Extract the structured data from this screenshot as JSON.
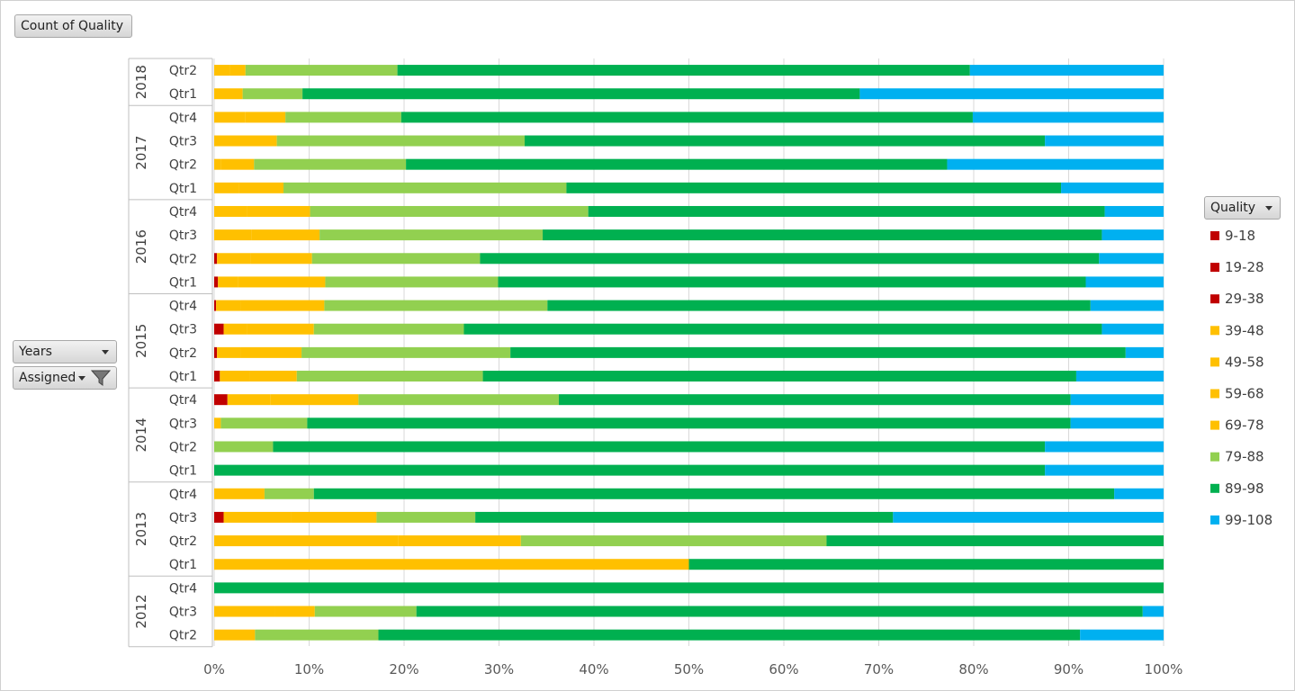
{
  "field_buttons": {
    "value_field": "Count of Quality",
    "row_field_1": "Years",
    "row_field_2": "Assigned",
    "legend_field": "Quality"
  },
  "colors": {
    "9-18": "#c00000",
    "19-28": "#c00000",
    "29-38": "#c00000",
    "39-48": "#ffc000",
    "49-58": "#ffc000",
    "59-68": "#ffc000",
    "69-78": "#ffc000",
    "79-88": "#92d050",
    "89-98": "#00b050",
    "99-108": "#00b0f0"
  },
  "chart_data": {
    "type": "bar",
    "orientation": "horizontal",
    "stacking": "percent",
    "title": "",
    "xlabel": "",
    "ylabel": "",
    "xlim": [
      0,
      100
    ],
    "x_ticks": [
      "0%",
      "10%",
      "20%",
      "30%",
      "40%",
      "50%",
      "60%",
      "70%",
      "80%",
      "90%",
      "100%"
    ],
    "legend": {
      "title": "Quality",
      "position": "right",
      "entries": [
        "9-18",
        "19-28",
        "29-38",
        "39-48",
        "49-58",
        "59-68",
        "69-78",
        "79-88",
        "89-98",
        "99-108"
      ]
    },
    "groups": [
      {
        "year": "2018",
        "quarters": [
          {
            "label": "Qtr2",
            "segments": [
              [
                "39-48",
                1.7
              ],
              [
                "49-58",
                1.6
              ],
              [
                "79-88",
                16
              ],
              [
                "89-98",
                60.3
              ],
              [
                "99-108",
                20.4
              ]
            ]
          },
          {
            "label": "Qtr1",
            "segments": [
              [
                "39-48",
                3
              ],
              [
                "79-88",
                6.3
              ],
              [
                "89-98",
                58.7
              ],
              [
                "99-108",
                32
              ]
            ]
          }
        ]
      },
      {
        "year": "2017",
        "quarters": [
          {
            "label": "Qtr4",
            "segments": [
              [
                "39-48",
                3.3
              ],
              [
                "49-58",
                4.2
              ],
              [
                "79-88",
                12.2
              ],
              [
                "89-98",
                60.2
              ],
              [
                "99-108",
                20.1
              ]
            ]
          },
          {
            "label": "Qtr3",
            "segments": [
              [
                "39-48",
                1.8
              ],
              [
                "49-58",
                4.8
              ],
              [
                "79-88",
                26.1
              ],
              [
                "89-98",
                54.8
              ],
              [
                "99-108",
                12.5
              ]
            ]
          },
          {
            "label": "Qtr2",
            "segments": [
              [
                "39-48",
                0.7
              ],
              [
                "49-58",
                3.5
              ],
              [
                "79-88",
                16
              ],
              [
                "89-98",
                57
              ],
              [
                "99-108",
                22.8
              ]
            ]
          },
          {
            "label": "Qtr1",
            "segments": [
              [
                "39-48",
                2.6
              ],
              [
                "49-58",
                4.7
              ],
              [
                "79-88",
                29.8
              ],
              [
                "89-98",
                52.1
              ],
              [
                "99-108",
                10.8
              ]
            ]
          }
        ]
      },
      {
        "year": "2016",
        "quarters": [
          {
            "label": "Qtr4",
            "segments": [
              [
                "39-48",
                3.5
              ],
              [
                "49-58",
                6.6
              ],
              [
                "79-88",
                29.3
              ],
              [
                "89-98",
                54.4
              ],
              [
                "99-108",
                6.2
              ]
            ]
          },
          {
            "label": "Qtr3",
            "segments": [
              [
                "39-48",
                3.9
              ],
              [
                "49-58",
                7.2
              ],
              [
                "79-88",
                23.5
              ],
              [
                "89-98",
                58.9
              ],
              [
                "99-108",
                6.5
              ]
            ]
          },
          {
            "label": "Qtr2",
            "segments": [
              [
                "9-18",
                0.3
              ],
              [
                "39-48",
                3.5
              ],
              [
                "49-58",
                6.5
              ],
              [
                "79-88",
                17.7
              ],
              [
                "89-98",
                65.2
              ],
              [
                "99-108",
                6.8
              ]
            ]
          },
          {
            "label": "Qtr1",
            "segments": [
              [
                "9-18",
                0.4
              ],
              [
                "39-48",
                2.1
              ],
              [
                "49-58",
                9.2
              ],
              [
                "79-88",
                18.2
              ],
              [
                "89-98",
                61.9
              ],
              [
                "99-108",
                8.2
              ]
            ]
          }
        ]
      },
      {
        "year": "2015",
        "quarters": [
          {
            "label": "Qtr4",
            "segments": [
              [
                "9-18",
                0.2
              ],
              [
                "39-48",
                2.6
              ],
              [
                "49-58",
                8.8
              ],
              [
                "79-88",
                23.5
              ],
              [
                "89-98",
                57.2
              ],
              [
                "99-108",
                7.7
              ]
            ]
          },
          {
            "label": "Qtr3",
            "segments": [
              [
                "9-18",
                1
              ],
              [
                "39-48",
                2.5
              ],
              [
                "49-58",
                7
              ],
              [
                "79-88",
                15.8
              ],
              [
                "89-98",
                67.2
              ],
              [
                "99-108",
                6.5
              ]
            ]
          },
          {
            "label": "Qtr2",
            "segments": [
              [
                "9-18",
                0.3
              ],
              [
                "39-48",
                2.5
              ],
              [
                "49-58",
                6.4
              ],
              [
                "79-88",
                22
              ],
              [
                "89-98",
                64.8
              ],
              [
                "99-108",
                4
              ]
            ]
          },
          {
            "label": "Qtr1",
            "segments": [
              [
                "9-18",
                0.6
              ],
              [
                "39-48",
                3.1
              ],
              [
                "49-58",
                5
              ],
              [
                "79-88",
                19.6
              ],
              [
                "89-98",
                62.5
              ],
              [
                "99-108",
                9.2
              ]
            ]
          }
        ]
      },
      {
        "year": "2014",
        "quarters": [
          {
            "label": "Qtr4",
            "segments": [
              [
                "9-18",
                1.4
              ],
              [
                "39-48",
                4.5
              ],
              [
                "49-58",
                9.3
              ],
              [
                "79-88",
                21.1
              ],
              [
                "89-98",
                53.9
              ],
              [
                "99-108",
                9.8
              ]
            ]
          },
          {
            "label": "Qtr3",
            "segments": [
              [
                "39-48",
                0.7
              ],
              [
                "79-88",
                9.1
              ],
              [
                "89-98",
                80.4
              ],
              [
                "99-108",
                9.8
              ]
            ]
          },
          {
            "label": "Qtr2",
            "segments": [
              [
                "79-88",
                6.2
              ],
              [
                "89-98",
                81.3
              ],
              [
                "99-108",
                12.5
              ]
            ]
          },
          {
            "label": "Qtr1",
            "segments": [
              [
                "89-98",
                87.5
              ],
              [
                "99-108",
                12.5
              ]
            ]
          }
        ]
      },
      {
        "year": "2013",
        "quarters": [
          {
            "label": "Qtr4",
            "segments": [
              [
                "39-48",
                5.3
              ],
              [
                "79-88",
                5.2
              ],
              [
                "89-98",
                84.3
              ],
              [
                "99-108",
                5.2
              ]
            ]
          },
          {
            "label": "Qtr3",
            "segments": [
              [
                "9-18",
                1
              ],
              [
                "39-48",
                7.1
              ],
              [
                "49-58",
                9
              ],
              [
                "79-88",
                10.4
              ],
              [
                "89-98",
                44
              ],
              [
                "99-108",
                28.5
              ]
            ]
          },
          {
            "label": "Qtr2",
            "segments": [
              [
                "39-48",
                19.4
              ],
              [
                "49-58",
                12.9
              ],
              [
                "79-88",
                32.2
              ],
              [
                "89-98",
                35.5
              ]
            ]
          },
          {
            "label": "Qtr1",
            "segments": [
              [
                "39-48",
                50
              ],
              [
                "89-98",
                50
              ]
            ]
          }
        ]
      },
      {
        "year": "2012",
        "quarters": [
          {
            "label": "Qtr4",
            "segments": [
              [
                "89-98",
                100
              ]
            ]
          },
          {
            "label": "Qtr3",
            "segments": [
              [
                "39-48",
                6.4
              ],
              [
                "49-58",
                4.2
              ],
              [
                "79-88",
                10.7
              ],
              [
                "89-98",
                76.5
              ],
              [
                "99-108",
                2.2
              ]
            ]
          },
          {
            "label": "Qtr2",
            "segments": [
              [
                "39-48",
                4.3
              ],
              [
                "79-88",
                13
              ],
              [
                "89-98",
                73.9
              ],
              [
                "99-108",
                8.8
              ]
            ]
          }
        ]
      }
    ]
  }
}
